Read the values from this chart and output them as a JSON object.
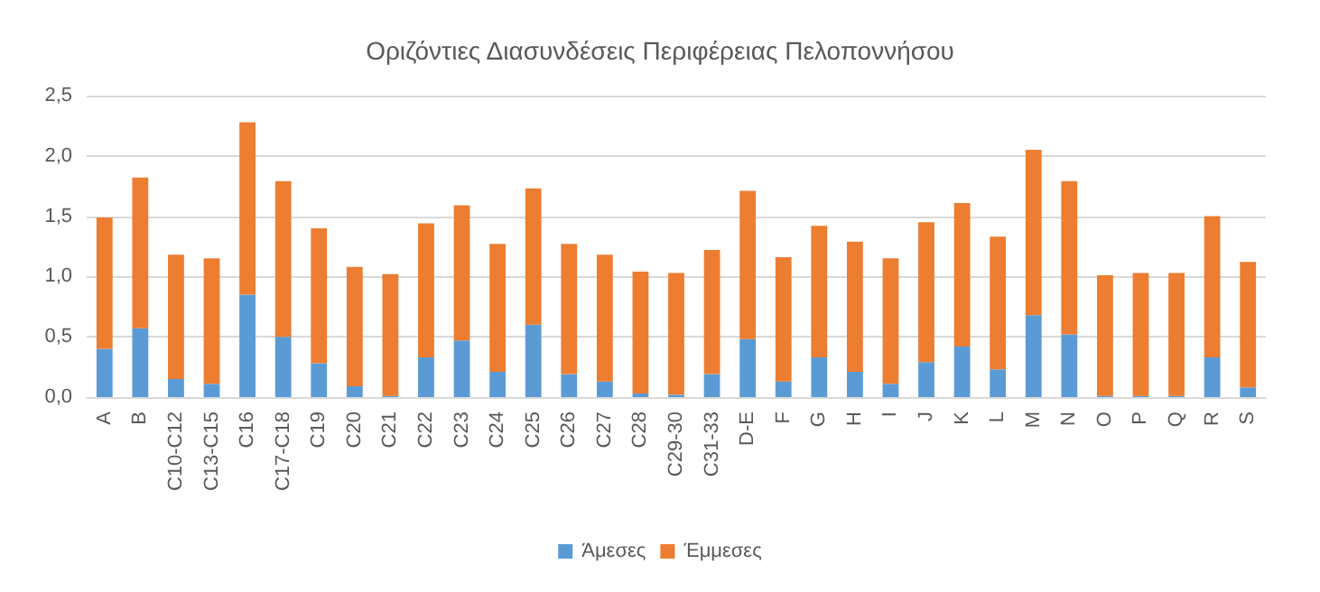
{
  "chart_data": {
    "type": "bar",
    "title": "Οριζόντιες Διασυνδέσεις Περιφέρειας Πελοποννήσου",
    "categories": [
      "A",
      "B",
      "C10-C12",
      "C13-C15",
      "C16",
      "C17-C18",
      "C19",
      "C20",
      "C21",
      "C22",
      "C23",
      "C24",
      "C25",
      "C26",
      "C27",
      "C28",
      "C29-30",
      "C31-33",
      "D-E",
      "F",
      "G",
      "H",
      "I",
      "J",
      "K",
      "L",
      "M",
      "N",
      "O",
      "P",
      "Q",
      "R",
      "S"
    ],
    "series": [
      {
        "name": "Άμεσες",
        "color": "#5b9bd5",
        "values": [
          0.4,
          0.57,
          0.15,
          0.11,
          0.85,
          0.5,
          0.28,
          0.09,
          0.01,
          0.33,
          0.47,
          0.21,
          0.6,
          0.19,
          0.13,
          0.03,
          0.02,
          0.19,
          0.48,
          0.13,
          0.33,
          0.21,
          0.11,
          0.29,
          0.42,
          0.23,
          0.68,
          0.52,
          0.01,
          0.01,
          0.01,
          0.33,
          0.08
        ]
      },
      {
        "name": "Έμμεσες",
        "color": "#ed7d31",
        "values": [
          1.09,
          1.25,
          1.03,
          1.04,
          1.43,
          1.29,
          1.12,
          0.99,
          1.01,
          1.11,
          1.12,
          1.06,
          1.13,
          1.08,
          1.05,
          1.01,
          1.01,
          1.03,
          1.23,
          1.03,
          1.09,
          1.08,
          1.04,
          1.16,
          1.19,
          1.1,
          1.37,
          1.27,
          1.0,
          1.02,
          1.02,
          1.17,
          1.04
        ]
      }
    ],
    "stacked": true,
    "ylim": [
      0,
      2.5
    ],
    "yticks": [
      {
        "value": 0,
        "label": "0,0"
      },
      {
        "value": 0.5,
        "label": "0,5"
      },
      {
        "value": 1,
        "label": "1,0"
      },
      {
        "value": 1.5,
        "label": "1,5"
      },
      {
        "value": 2,
        "label": "2,0"
      },
      {
        "value": 2.5,
        "label": "2,5"
      }
    ],
    "grid": "y",
    "legend": "bottom"
  }
}
